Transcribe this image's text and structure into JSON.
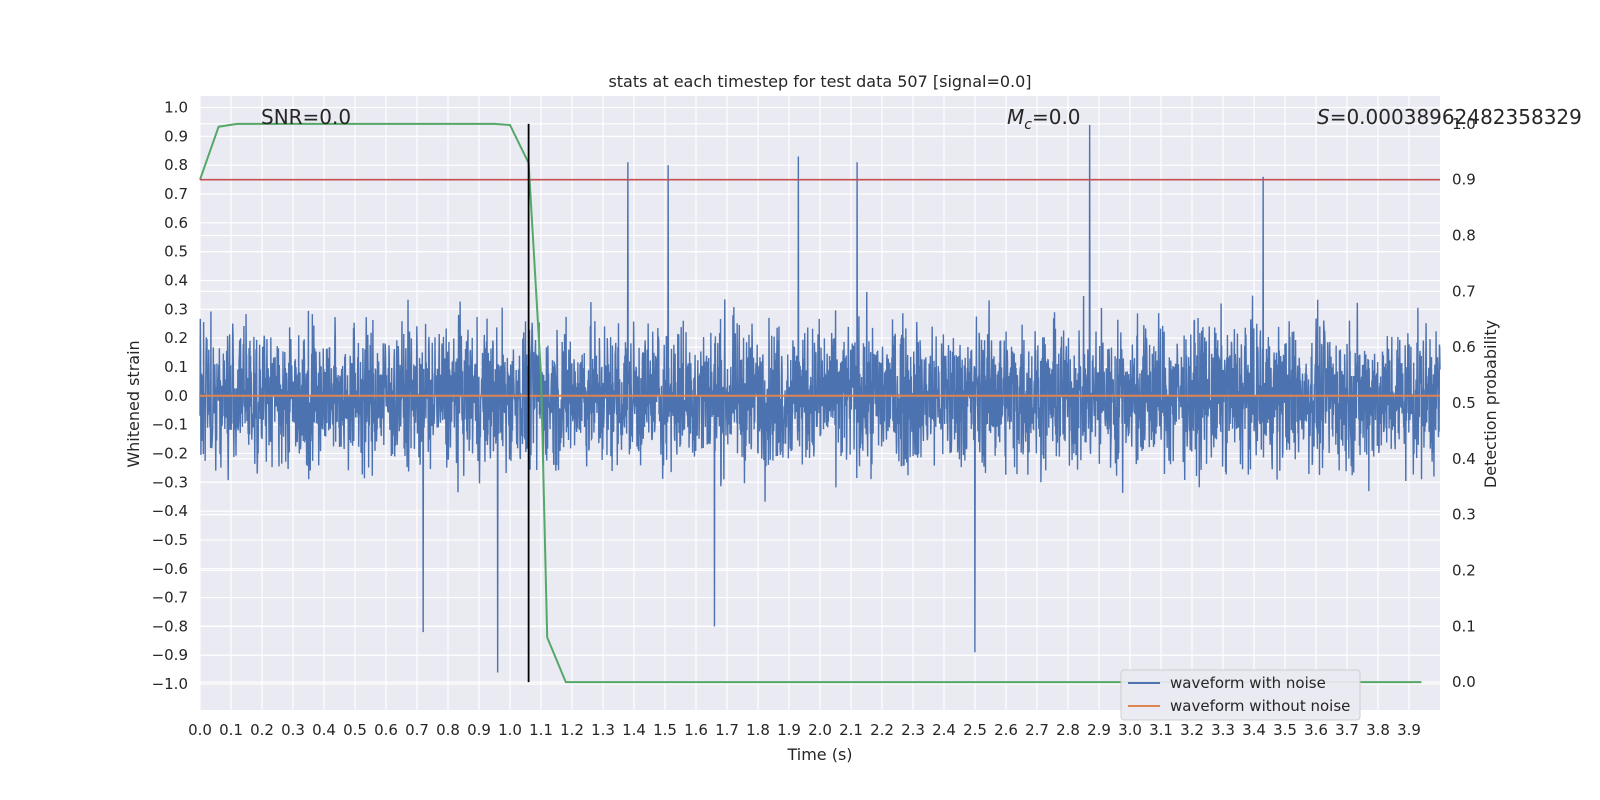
{
  "chart_data": {
    "type": "line",
    "title": "stats at each timestep for test data 507 [signal=0.0]",
    "xlabel": "Time (s)",
    "ylabel_left": "Whitened strain",
    "ylabel_right": "Detection probability",
    "xlim": [
      0.0,
      4.0
    ],
    "ylim_left": [
      -1.09,
      1.04
    ],
    "ylim_right": [
      -0.05,
      1.05
    ],
    "x_ticks": [
      "0.0",
      "0.1",
      "0.2",
      "0.3",
      "0.4",
      "0.5",
      "0.6",
      "0.7",
      "0.8",
      "0.9",
      "1.0",
      "1.1",
      "1.2",
      "1.3",
      "1.4",
      "1.5",
      "1.6",
      "1.7",
      "1.8",
      "1.9",
      "2.0",
      "2.1",
      "2.2",
      "2.3",
      "2.4",
      "2.5",
      "2.6",
      "2.7",
      "2.8",
      "2.9",
      "3.0",
      "3.1",
      "3.2",
      "3.3",
      "3.4",
      "3.5",
      "3.6",
      "3.7",
      "3.8",
      "3.9"
    ],
    "y_ticks_left": [
      "1.0",
      "0.9",
      "0.8",
      "0.7",
      "0.6",
      "0.5",
      "0.4",
      "0.3",
      "0.2",
      "0.1",
      "0.0",
      "-0.1",
      "-0.2",
      "-0.3",
      "-0.4",
      "-0.5",
      "-0.6",
      "-0.7",
      "-0.8",
      "-0.9",
      "-1.0"
    ],
    "y_ticks_right": [
      "1.0",
      "0.9",
      "0.8",
      "0.7",
      "0.6",
      "0.5",
      "0.4",
      "0.3",
      "0.2",
      "0.1",
      "0.0"
    ],
    "grid": true,
    "legend_position": "lower-right",
    "annotations": {
      "snr": "SNR=0.0",
      "mc_symbol": "M",
      "mc_sub": "c",
      "mc_value": "=0.0",
      "s_symbol": "S",
      "s_value": "=0.00038962482358329"
    },
    "series": [
      {
        "name": "waveform with noise",
        "axis": "left",
        "color": "#4c72b0",
        "style": "noise",
        "range": [
          -0.96,
          0.94
        ],
        "notable_peaks": [
          {
            "x": 2.87,
            "y": 0.94
          },
          {
            "x": 1.93,
            "y": 0.83
          },
          {
            "x": 1.38,
            "y": 0.81
          },
          {
            "x": 1.51,
            "y": 0.8
          },
          {
            "x": 2.12,
            "y": 0.81
          },
          {
            "x": 3.43,
            "y": 0.76
          },
          {
            "x": 0.96,
            "y": -0.96
          },
          {
            "x": 2.5,
            "y": -0.89
          },
          {
            "x": 0.72,
            "y": -0.82
          },
          {
            "x": 1.66,
            "y": -0.8
          }
        ]
      },
      {
        "name": "waveform without noise",
        "axis": "left",
        "color": "#dd8452",
        "x": [
          0.0,
          4.0
        ],
        "y": [
          0.0,
          0.0
        ]
      },
      {
        "axis": "right",
        "color": "#55a868",
        "x": [
          0.0,
          0.06,
          0.12,
          0.2,
          0.4,
          0.6,
          0.8,
          0.95,
          1.0,
          1.06,
          1.1,
          1.12,
          1.18,
          1.3,
          2.0,
          3.0,
          3.94
        ],
        "y": [
          0.9,
          0.995,
          1.0,
          1.0,
          1.0,
          1.0,
          1.0,
          1.0,
          0.998,
          0.93,
          0.55,
          0.08,
          0.0,
          0.0,
          0.0,
          0.0,
          0.0
        ]
      },
      {
        "axis": "right",
        "color": "#c44e52",
        "x": [
          0.0,
          4.0
        ],
        "y": [
          0.9,
          0.9
        ]
      }
    ],
    "vertical_line": {
      "x": 1.06,
      "y_range_right": [
        0.0,
        1.0
      ],
      "color": "#000000"
    }
  }
}
